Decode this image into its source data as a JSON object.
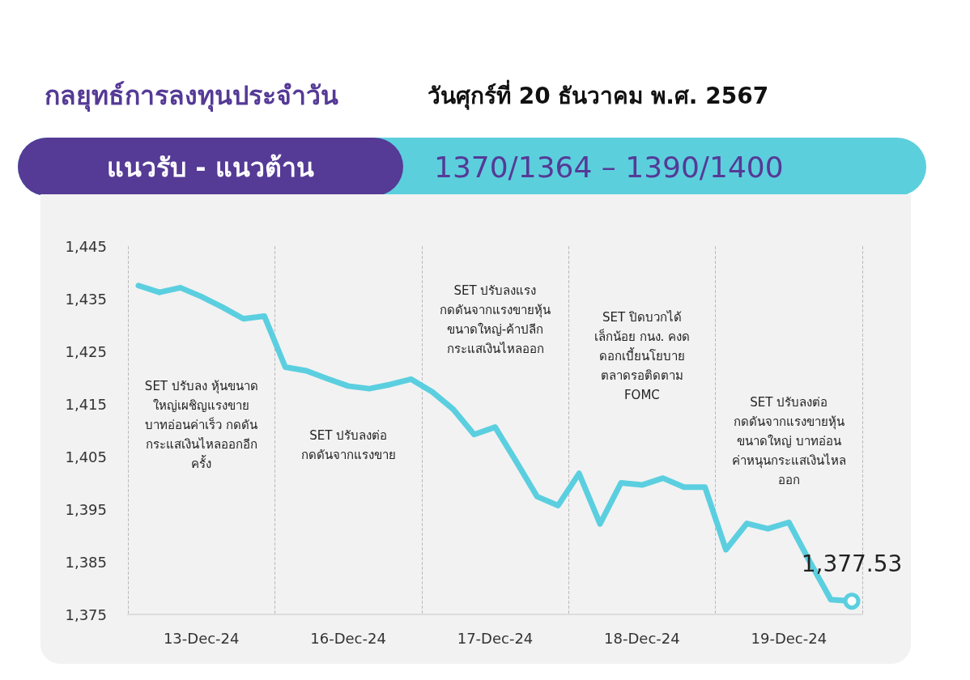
{
  "chart_data": {
    "type": "line",
    "title": "กลยุทธ์การลงทุนประจำวัน",
    "subtitle": "วันศุกร์ที่ 20 ธันวาคม พ.ศ. 2567",
    "annotations": [
      "แนวรับ - แนวต้าน",
      "1370/1364 – 1390/1400",
      "SET ปรับลง หุ้นขนาด\nใหญ่เผชิญแรงขาย\nบาทอ่อนค่าเร็ว กดดัน\nกระแสเงินไหลออกอีก\nครั้ง",
      "SET ปรับลงต่อ\nกดดันจากแรงขาย",
      "SET ปรับลงแรง\nกดดันจากแรงขายหุ้น\nขนาดใหญ่-ค้าปลีก\nกระแสเงินไหลออก",
      "SET ปิดบวกได้\nเล็กน้อย กนง. คงด\nดอกเบี้ยนโยบาย\nตลาดรอติดตาม\nFOMC",
      "SET ปรับลงต่อ\nกดดันจากแรงขายหุ้น\nขนาดใหญ่ บาทอ่อน\nค่าหนุนกระแสเงินไหล\nออก"
    ],
    "categories": [
      null,
      null,
      null,
      "13-Dec-24",
      null,
      null,
      null,
      null,
      null,
      null,
      "16-Dec-24",
      null,
      null,
      null,
      null,
      null,
      null,
      "17-Dec-24",
      null,
      null,
      null,
      null,
      null,
      null,
      "18-Dec-24",
      null,
      null,
      null,
      null,
      null,
      null,
      "19-Dec-24",
      null,
      null,
      null
    ],
    "series": [
      {
        "color": "#5bcfdf",
        "values": [
          1437.5,
          1436.2,
          1437.1,
          1435.4,
          1433.4,
          1431.2,
          1431.7,
          1422.0,
          1421.3,
          1419.8,
          1418.4,
          1417.9,
          1418.7,
          1419.7,
          1417.3,
          1414.0,
          1409.2,
          1410.6,
          1404.1,
          1397.4,
          1395.7,
          1401.8,
          1392.2,
          1400.0,
          1399.6,
          1400.9,
          1399.2,
          1399.2,
          1387.3,
          1392.3,
          1391.3,
          1392.5,
          1385.0,
          1377.8,
          1377.53
        ],
        "value_labels": [
          null,
          null,
          null,
          null,
          null,
          null,
          null,
          null,
          null,
          null,
          null,
          null,
          null,
          null,
          null,
          null,
          null,
          null,
          null,
          null,
          null,
          null,
          null,
          null,
          null,
          null,
          null,
          null,
          null,
          null,
          null,
          null,
          null,
          null,
          "1,377.53"
        ]
      }
    ],
    "ylim": [
      1375,
      1445
    ],
    "yticks": [
      {
        "value": 1375,
        "label": "1,375"
      },
      {
        "value": 1385,
        "label": "1,385"
      },
      {
        "value": 1395,
        "label": "1,395"
      },
      {
        "value": 1405,
        "label": "1,405"
      },
      {
        "value": 1415,
        "label": "1,415"
      },
      {
        "value": 1425,
        "label": "1,425"
      },
      {
        "value": 1435,
        "label": "1,435"
      },
      {
        "value": 1445,
        "label": "1,445"
      }
    ],
    "grid": "x"
  }
}
